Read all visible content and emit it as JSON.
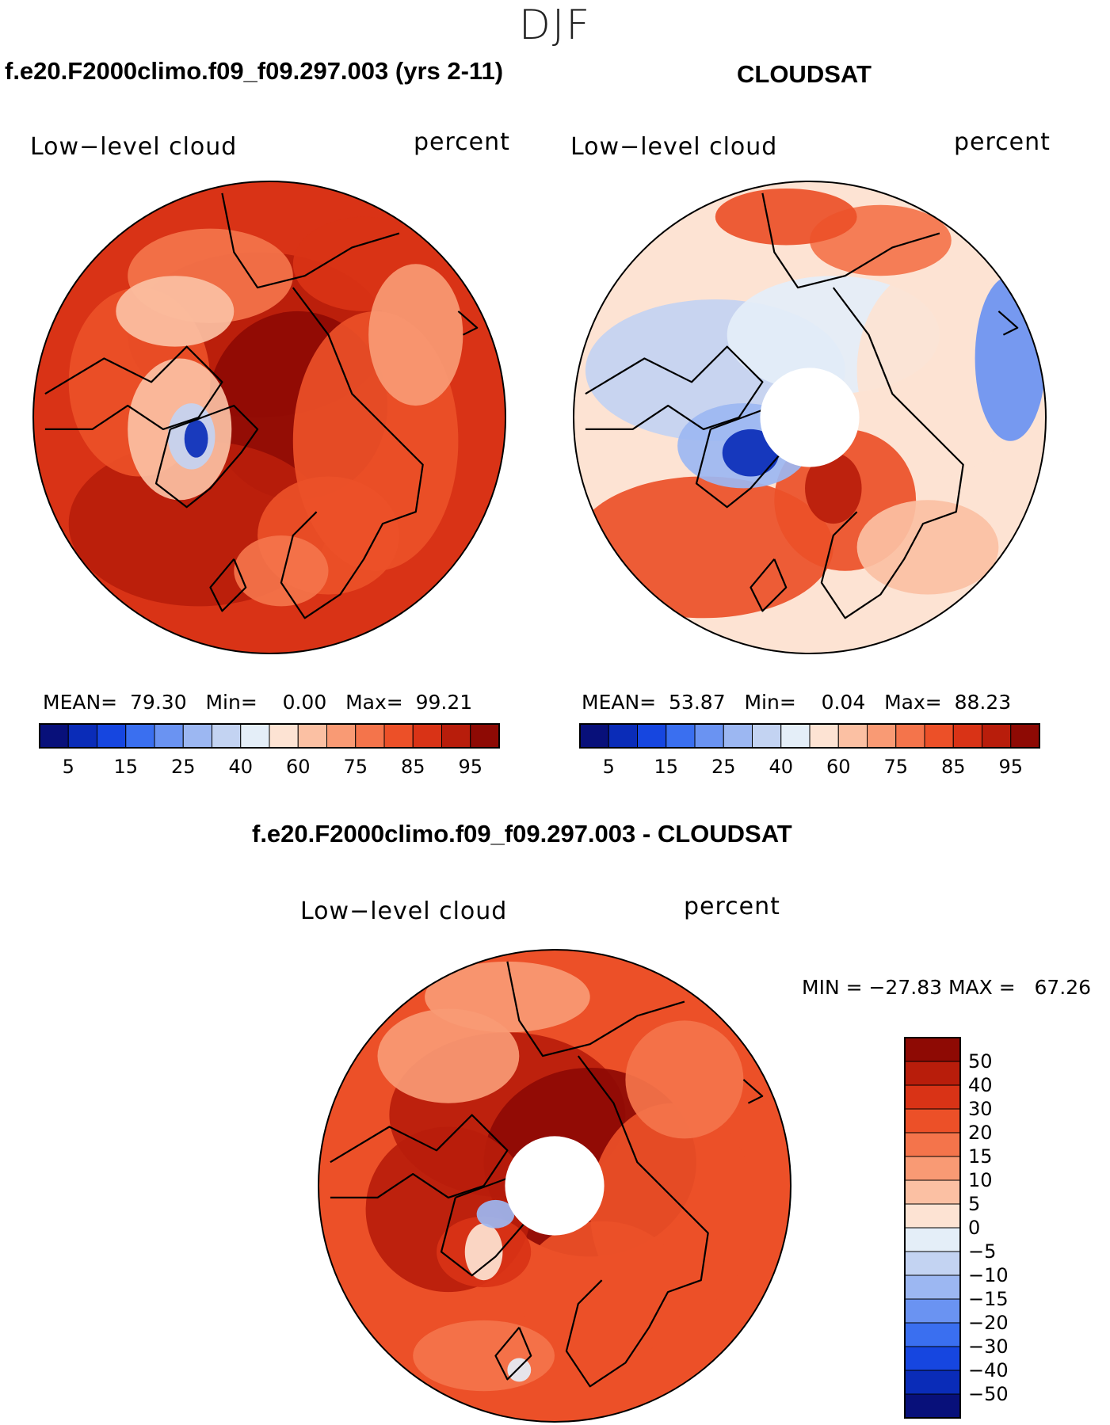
{
  "page": {
    "season": "DJF"
  },
  "panels": {
    "model": {
      "title": "f.e20.F2000climo.f09_f09.297.003 (yrs 2-11)",
      "variable": "Low−level cloud",
      "units": "percent",
      "stats": {
        "mean_label": "MEAN=",
        "mean": "79.30",
        "min_label": "Min=",
        "min": "0.00",
        "max_label": "Max=",
        "max": "99.21"
      }
    },
    "obs": {
      "title": "CLOUDSAT",
      "variable": "Low−level cloud",
      "units": "percent",
      "stats": {
        "mean_label": "MEAN=",
        "mean": "53.87",
        "min_label": "Min=",
        "min": "0.04",
        "max_label": "Max=",
        "max": "88.23"
      }
    },
    "diff": {
      "title": "f.e20.F2000climo.f09_f09.297.003 - CLOUDSAT",
      "variable": "Low−level cloud",
      "units": "percent",
      "minmax_text": "MIN = −27.83 MAX =   67.26"
    }
  },
  "chart_data": [
    {
      "type": "heatmap",
      "projection": "north-polar-stereographic",
      "title": "f.e20.F2000climo.f09_f09.297.003 (yrs 2-11)",
      "field": "Low-level cloud",
      "units": "percent",
      "mean": 79.3,
      "min": 0.0,
      "max": 99.21,
      "colorbar": {
        "orientation": "horizontal",
        "placement": "below",
        "tick_labels": [
          "5",
          "15",
          "25",
          "40",
          "60",
          "75",
          "85",
          "95"
        ],
        "n_bins": 16
      }
    },
    {
      "type": "heatmap",
      "projection": "north-polar-stereographic",
      "title": "CLOUDSAT",
      "field": "Low-level cloud",
      "units": "percent",
      "mean": 53.87,
      "min": 0.04,
      "max": 88.23,
      "missing_region": "polar cap (no data)",
      "colorbar": {
        "orientation": "horizontal",
        "placement": "below",
        "tick_labels": [
          "5",
          "15",
          "25",
          "40",
          "60",
          "75",
          "85",
          "95"
        ],
        "n_bins": 16
      }
    },
    {
      "type": "heatmap",
      "projection": "north-polar-stereographic",
      "title": "f.e20.F2000climo.f09_f09.297.003 - CLOUDSAT",
      "field": "Low-level cloud",
      "units": "percent",
      "min": -27.83,
      "max": 67.26,
      "missing_region": "polar cap (no data)",
      "colorbar": {
        "orientation": "vertical",
        "placement": "right",
        "tick_labels": [
          "50",
          "40",
          "30",
          "20",
          "15",
          "10",
          "5",
          "0",
          "−5",
          "−10",
          "−15",
          "−20",
          "−30",
          "−40",
          "−50"
        ],
        "n_bins": 16
      }
    }
  ],
  "palette": {
    "sequential": [
      "#08107a",
      "#0a2cb8",
      "#1646e0",
      "#3a6ff0",
      "#6a93f2",
      "#9cb7f2",
      "#c3d3f2",
      "#e4eef8",
      "#fde3d3",
      "#fbc0a3",
      "#f99a74",
      "#f4744b",
      "#ec5028",
      "#d93316",
      "#b81d0b",
      "#8e0a04"
    ],
    "diverging": [
      "#08107a",
      "#0a2cb8",
      "#1646e0",
      "#3a6ff0",
      "#6a93f2",
      "#9cb7f2",
      "#c3d3f2",
      "#e4eef8",
      "#fde3d3",
      "#fbc0a3",
      "#f99a74",
      "#f4744b",
      "#ec5028",
      "#d93316",
      "#b81d0b",
      "#8e0a04"
    ],
    "coast": "#000000",
    "missing": "#ffffff"
  }
}
